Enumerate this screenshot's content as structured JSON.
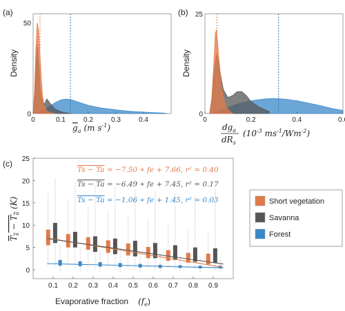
{
  "colors": {
    "short": "#e07b4a",
    "savanna": "#555555",
    "forest": "#3b88c9",
    "mean_line": "#2a6fb5"
  },
  "panels": {
    "a": "(a)",
    "b": "(b)",
    "c": "(c)"
  },
  "chart_data": [
    {
      "id": "a",
      "type": "area",
      "ylabel": "Density",
      "xlabel_parts": [
        "g",
        "a",
        "(m s",
        "-1",
        ")"
      ],
      "xlim": [
        0,
        0.5
      ],
      "ylim": [
        0,
        55
      ],
      "xticks": [
        "0",
        "0.1",
        "0.2",
        "0.3",
        "0.4"
      ],
      "yticks": [
        "0",
        "50"
      ],
      "mean_markers": [
        {
          "series": "Short vegetation",
          "x": 0.025
        },
        {
          "series": "Forest",
          "x": 0.135
        }
      ],
      "series": [
        {
          "name": "Short vegetation",
          "x": [
            0,
            0.005,
            0.01,
            0.015,
            0.02,
            0.025,
            0.03,
            0.035,
            0.04,
            0.05,
            0.06,
            0.08
          ],
          "y": [
            0,
            12,
            35,
            50,
            46,
            32,
            18,
            9,
            4,
            1.5,
            0.5,
            0
          ]
        },
        {
          "name": "Savanna",
          "x": [
            0,
            0.005,
            0.01,
            0.015,
            0.02,
            0.025,
            0.03,
            0.04,
            0.05,
            0.06,
            0.07,
            0.08,
            0.1,
            0.12,
            0.14
          ],
          "y": [
            0,
            8,
            25,
            38,
            28,
            16,
            9,
            5,
            8,
            6,
            4,
            2.5,
            1,
            0.4,
            0
          ]
        },
        {
          "name": "Forest",
          "x": [
            0,
            0.02,
            0.04,
            0.06,
            0.08,
            0.1,
            0.12,
            0.14,
            0.16,
            0.18,
            0.2,
            0.25,
            0.3,
            0.35,
            0.4,
            0.45,
            0.48
          ],
          "y": [
            0,
            0.5,
            2,
            4,
            6,
            7.5,
            8,
            7.5,
            6.5,
            5.5,
            4.5,
            3,
            2,
            1.2,
            0.8,
            0.4,
            0.2
          ]
        }
      ]
    },
    {
      "id": "b",
      "type": "area",
      "ylabel": "Density",
      "xlabel_parts": [
        "dg",
        "a",
        "dR",
        "s",
        "(10",
        "-3",
        " ms",
        "-1",
        "/Wm",
        "-2",
        ")"
      ],
      "xlim": [
        0,
        0.6
      ],
      "ylim": [
        0,
        25
      ],
      "xticks": [
        "0",
        "0.2",
        "0.4",
        "0.6"
      ],
      "yticks": [
        "0",
        "25"
      ],
      "mean_markers": [
        {
          "series": "Short vegetation",
          "x": 0.052
        },
        {
          "series": "Forest",
          "x": 0.32
        }
      ],
      "series": [
        {
          "name": "Short vegetation",
          "x": [
            0.02,
            0.03,
            0.04,
            0.045,
            0.05,
            0.055,
            0.06,
            0.07,
            0.08,
            0.09,
            0.1,
            0.12
          ],
          "y": [
            0,
            4,
            14,
            20,
            21,
            18,
            14,
            8,
            4,
            2,
            1,
            0
          ]
        },
        {
          "name": "Savanna",
          "x": [
            0.02,
            0.03,
            0.04,
            0.05,
            0.06,
            0.07,
            0.08,
            0.1,
            0.12,
            0.14,
            0.16,
            0.18,
            0.2,
            0.24,
            0.28
          ],
          "y": [
            0,
            3,
            10,
            15,
            13,
            9,
            6,
            4,
            4.5,
            5.5,
            5.5,
            4.5,
            3,
            1.5,
            0.5
          ]
        },
        {
          "name": "Forest",
          "x": [
            0.02,
            0.05,
            0.1,
            0.15,
            0.2,
            0.25,
            0.3,
            0.35,
            0.4,
            0.45,
            0.5,
            0.55,
            0.6
          ],
          "y": [
            0,
            0.5,
            1.5,
            2.5,
            3.2,
            3.6,
            3.8,
            3.6,
            3.2,
            2.6,
            2,
            1.3,
            0.8
          ]
        }
      ]
    },
    {
      "id": "c",
      "type": "box",
      "ylabel_parts": [
        "T",
        "s",
        " − ",
        "T",
        "a",
        " (K)"
      ],
      "xlabel": "Evaporative fraction",
      "xlabel_math": "(f",
      "xlabel_math_sub": "e",
      "xlabel_math_end": ")",
      "xlim": [
        0,
        1
      ],
      "ylim": [
        -2,
        25
      ],
      "xticks": [
        "0.1",
        "0.2",
        "0.3",
        "0.4",
        "0.5",
        "0.6",
        "0.7",
        "0.8",
        "0.9"
      ],
      "yticks": [
        "0",
        "5",
        "10",
        "15",
        "20",
        "25"
      ],
      "equations": [
        {
          "series": "Short vegetation",
          "lhs": "Ts − Ta",
          "rhs": " = −7.50 ∗ fe + 7.66, r² = 0.40"
        },
        {
          "series": "Savanna",
          "lhs": "Ts − Ta",
          "rhs": " = −6.49 ∗ fe + 7.45, r² = 0.17"
        },
        {
          "series": "Forest",
          "lhs": "Ts − Ta",
          "rhs": " = −1.06 ∗ fe + 1.45, r² = 0.03"
        }
      ],
      "fits": [
        {
          "series": "Short vegetation",
          "slope": -7.5,
          "intercept": 7.66
        },
        {
          "series": "Savanna",
          "slope": -6.49,
          "intercept": 7.45
        },
        {
          "series": "Forest",
          "slope": -1.06,
          "intercept": 1.45
        }
      ],
      "legend": {
        "placement": "right",
        "entries": [
          "Short vegetation",
          "Savanna",
          "Forest"
        ]
      },
      "series": [
        {
          "name": "Short vegetation",
          "offset": -0.025,
          "x": [
            0.1,
            0.2,
            0.3,
            0.4,
            0.5,
            0.6,
            0.7,
            0.8,
            0.9
          ],
          "q1": [
            5.5,
            5.0,
            4.5,
            3.8,
            3.2,
            2.6,
            2.0,
            1.6,
            1.2
          ],
          "q3": [
            9.0,
            8.0,
            7.3,
            6.6,
            5.9,
            5.1,
            4.4,
            3.8,
            3.6
          ],
          "whisker_low": [
            1.0,
            0.8,
            0.7,
            0.6,
            0.5,
            0.4,
            0.3,
            0.2,
            0.2
          ],
          "whisker_high": [
            17,
            15.5,
            14,
            13,
            12,
            11,
            10,
            9,
            8.5
          ]
        },
        {
          "name": "Savanna",
          "offset": 0.01,
          "x": [
            0.1,
            0.2,
            0.3,
            0.4,
            0.5,
            0.6,
            0.7,
            0.8,
            0.9
          ],
          "q1": [
            6.0,
            5.0,
            4.0,
            3.5,
            3.0,
            2.6,
            2.2,
            1.8,
            1.6
          ],
          "q3": [
            10.5,
            8.5,
            7.5,
            7.0,
            6.5,
            6.0,
            5.5,
            5.0,
            4.8
          ],
          "whisker_low": [
            0.5,
            0.2,
            0.1,
            0.1,
            0.0,
            0.0,
            0.0,
            0.0,
            0.0
          ],
          "whisker_high": [
            20.5,
            19.5,
            19.0,
            18.5,
            18.0,
            17.5,
            17.0,
            16.5,
            18.0
          ]
        },
        {
          "name": "Forest",
          "offset": 0.035,
          "x": [
            0.1,
            0.2,
            0.3,
            0.4,
            0.5,
            0.6,
            0.7,
            0.8,
            0.9
          ],
          "q1": [
            0.9,
            0.8,
            0.7,
            0.6,
            0.5,
            0.4,
            0.4,
            0.3,
            0.3
          ],
          "q3": [
            2.2,
            1.9,
            1.7,
            1.5,
            1.3,
            1.1,
            1.0,
            0.9,
            0.9
          ],
          "whisker_low": [
            -0.6,
            -0.6,
            -0.6,
            -0.6,
            -0.6,
            -0.6,
            -0.6,
            -0.6,
            -0.6
          ],
          "whisker_high": [
            5.5,
            5.0,
            4.5,
            4.0,
            3.5,
            3.2,
            3.0,
            2.8,
            2.6
          ]
        }
      ]
    }
  ]
}
